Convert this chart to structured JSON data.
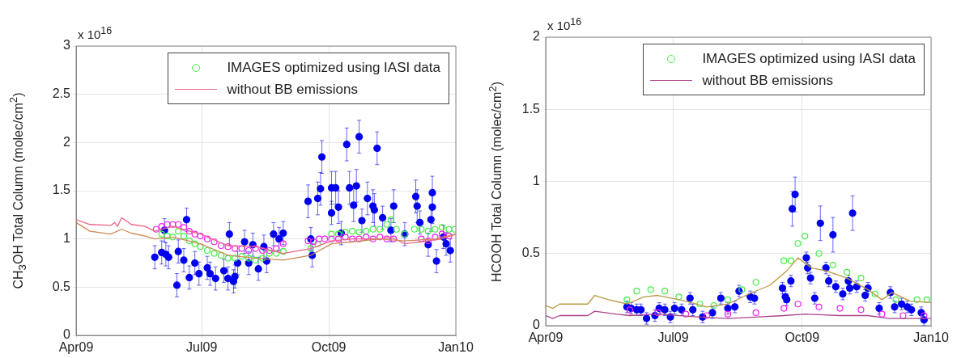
{
  "chart_data": [
    {
      "type": "scatter",
      "ylabel": "CH$_{3}$OH Total Column (molec/cm$^{2}$)",
      "annotations": [
        "x 10$^{16}$"
      ],
      "xlim": [
        "2009-04-01",
        "2010-01-01"
      ],
      "xticks": [
        {
          "value": "2009-04-01",
          "label": "Apr09"
        },
        {
          "value": "2009-07-01",
          "label": "Jul09"
        },
        {
          "value": "2009-10-01",
          "label": "Oct09"
        },
        {
          "value": "2010-01-01",
          "label": "Jan10"
        }
      ],
      "ylim": [
        0,
        3
      ],
      "yticks": [
        0,
        0.5,
        1,
        1.5,
        2,
        2.5,
        3
      ],
      "grid": true,
      "legend": "top right",
      "series": [
        {
          "type": "line",
          "color": "#cc8855",
          "x": [
            "2009-04-01",
            "2009-04-11",
            "2009-04-26",
            "2009-05-04",
            "2009-05-11",
            "2009-05-21",
            "2009-05-28",
            "2009-06-10",
            "2009-06-30",
            "2009-07-20",
            "2009-08-09",
            "2009-08-29",
            "2009-09-18",
            "2009-10-03",
            "2009-10-18",
            "2009-11-07",
            "2009-11-25",
            "2009-12-17",
            "2010-01-01"
          ],
          "values": [
            1.17,
            1.08,
            1.05,
            1.1,
            1.06,
            1.03,
            1.0,
            1.02,
            0.95,
            0.83,
            0.8,
            0.78,
            0.83,
            0.95,
            0.97,
            1.0,
            0.98,
            1.0,
            1.05
          ]
        },
        {
          "type": "line",
          "name": "without BB emissions",
          "color": "#ee6688",
          "x": [
            "2009-04-01",
            "2009-04-11",
            "2009-04-26",
            "2009-04-29",
            "2009-05-01",
            "2009-05-04",
            "2009-05-11",
            "2009-05-21",
            "2009-05-28",
            "2009-06-10",
            "2009-06-30",
            "2009-07-20",
            "2009-08-09",
            "2009-08-29",
            "2009-09-18",
            "2009-10-03",
            "2009-10-18",
            "2009-11-07",
            "2009-11-15",
            "2009-11-25",
            "2009-12-07",
            "2009-12-22",
            "2010-01-01"
          ],
          "values": [
            1.2,
            1.15,
            1.14,
            1.17,
            1.13,
            1.22,
            1.15,
            1.13,
            1.08,
            1.13,
            1.05,
            0.93,
            0.92,
            0.85,
            0.9,
            0.98,
            1.0,
            1.0,
            1.02,
            0.95,
            0.97,
            1.0,
            1.05
          ]
        },
        {
          "color": "#ee22ee",
          "marker": "circle",
          "x": [
            "2009-05-29",
            "2009-06-02",
            "2009-06-06",
            "2009-06-10",
            "2009-06-14",
            "2009-06-18",
            "2009-06-22",
            "2009-06-26",
            "2009-06-30",
            "2009-07-05",
            "2009-07-10",
            "2009-07-15",
            "2009-07-20",
            "2009-07-25",
            "2009-07-30",
            "2009-08-04",
            "2009-08-09",
            "2009-08-14",
            "2009-08-19",
            "2009-08-24",
            "2009-08-29",
            "2009-09-16",
            "2009-09-20",
            "2009-09-24",
            "2009-09-28",
            "2009-10-03",
            "2009-10-08",
            "2009-10-13",
            "2009-10-18",
            "2009-10-23",
            "2009-10-28",
            "2009-11-02",
            "2009-11-07",
            "2009-11-12",
            "2009-11-17",
            "2009-12-07",
            "2009-12-12",
            "2009-12-17",
            "2009-12-22",
            "2009-12-27"
          ],
          "values": [
            1.1,
            1.13,
            1.15,
            1.15,
            1.15,
            1.12,
            1.08,
            1.05,
            1.03,
            1.0,
            0.97,
            0.93,
            0.92,
            0.9,
            0.9,
            0.88,
            0.9,
            0.88,
            0.88,
            0.9,
            0.95,
            0.98,
            0.97,
            1.0,
            1.0,
            1.0,
            1.0,
            1.02,
            1.0,
            1.0,
            1.02,
            1.0,
            1.02,
            1.0,
            1.0,
            1.0,
            0.98,
            1.02,
            1.05,
            1.03
          ]
        },
        {
          "name": "IMAGES optimized using IASI data",
          "color": "#44ee44",
          "marker": "circle",
          "x": [
            "2009-06-02",
            "2009-06-06",
            "2009-06-10",
            "2009-06-14",
            "2009-06-18",
            "2009-06-22",
            "2009-06-26",
            "2009-06-30",
            "2009-07-05",
            "2009-07-10",
            "2009-07-15",
            "2009-07-20",
            "2009-07-25",
            "2009-07-30",
            "2009-08-04",
            "2009-08-09",
            "2009-08-14",
            "2009-08-19",
            "2009-08-24",
            "2009-08-29",
            "2009-09-18",
            "2009-09-23",
            "2009-09-28",
            "2009-10-03",
            "2009-10-08",
            "2009-10-13",
            "2009-10-18",
            "2009-10-23",
            "2009-10-28",
            "2009-11-02",
            "2009-11-07",
            "2009-11-12",
            "2009-11-15",
            "2009-11-19",
            "2009-11-25",
            "2009-12-02",
            "2009-12-07",
            "2009-12-12",
            "2009-12-17",
            "2009-12-22",
            "2009-12-27",
            "2009-12-31"
          ],
          "values": [
            1.05,
            1.03,
            1.02,
            1.08,
            1.03,
            0.98,
            0.95,
            0.92,
            0.88,
            0.85,
            0.83,
            0.8,
            0.8,
            0.82,
            0.8,
            0.78,
            0.8,
            0.85,
            0.85,
            0.87,
            0.9,
            0.95,
            null,
            1.05,
            1.05,
            1.07,
            1.08,
            1.07,
            1.08,
            1.1,
            1.1,
            1.15,
            1.2,
            1.1,
            1.05,
            1.1,
            1.1,
            1.08,
            1.1,
            1.12,
            1.1,
            1.1
          ]
        },
        {
          "color": "#0000ee",
          "marker": "circle",
          "x": [
            "2009-05-28",
            "2009-06-02",
            "2009-06-05",
            "2009-06-07",
            "2009-06-04",
            "2009-06-13",
            "2009-06-14",
            "2009-06-18",
            "2009-06-20",
            "2009-06-22",
            "2009-06-26",
            "2009-06-29",
            "2009-07-05",
            "2009-07-07",
            "2009-07-11",
            "2009-07-17",
            "2009-07-21",
            "2009-07-20",
            "2009-07-24",
            "2009-07-25",
            "2009-07-27",
            "2009-08-01",
            "2009-08-04",
            "2009-08-07",
            "2009-08-11",
            "2009-08-15",
            "2009-08-17",
            "2009-08-22",
            "2009-08-26",
            "2009-08-29",
            "2009-09-16",
            "2009-09-18",
            "2009-09-19",
            "2009-09-23",
            "2009-09-25",
            "2009-09-26",
            "2009-10-03",
            "2009-10-03",
            "2009-10-06",
            "2009-10-08",
            "2009-10-10",
            "2009-10-14",
            "2009-10-16",
            "2009-10-19",
            "2009-10-21",
            "2009-10-23",
            "2009-10-25",
            "2009-10-29",
            "2009-11-02",
            "2009-11-03",
            "2009-11-05",
            "2009-11-09",
            "2009-11-15",
            "2009-11-17",
            "2009-11-25",
            "2009-12-03",
            "2009-12-04",
            "2009-12-06",
            "2009-12-12",
            "2009-12-14",
            "2009-12-15",
            "2009-12-15",
            "2009-12-18",
            "2009-12-23",
            "2009-12-25",
            "2009-12-28"
          ],
          "values": [
            0.81,
            0.86,
            0.84,
            0.81,
            1.09,
            0.52,
            0.87,
            0.78,
            1.2,
            0.6,
            0.75,
            0.64,
            0.7,
            0.64,
            0.59,
            0.67,
            1.05,
            0.59,
            0.56,
            0.61,
            0.75,
            0.97,
            0.75,
            0.94,
            0.69,
            0.92,
            0.77,
            1.05,
            1.0,
            1.06,
            1.39,
            1.0,
            0.83,
            1.42,
            1.52,
            1.85,
            1.27,
            1.53,
            1.53,
            1.33,
            1.06,
            1.98,
            1.53,
            1.35,
            1.55,
            2.06,
            1.19,
            1.42,
            1.34,
            1.3,
            1.94,
            1.22,
            1.09,
            1.34,
            1.05,
            1.44,
            1.34,
            1.17,
            0.94,
            1.2,
            1.48,
            1.33,
            0.77,
            1.02,
            0.95,
            0.88
          ],
          "errors": [
            0.12,
            0.12,
            0.12,
            0.12,
            0.12,
            0.12,
            0.12,
            0.12,
            0.12,
            0.12,
            0.12,
            0.12,
            0.12,
            0.12,
            0.12,
            0.12,
            0.12,
            0.12,
            0.12,
            0.12,
            0.12,
            0.12,
            0.12,
            0.12,
            0.12,
            0.12,
            0.12,
            0.12,
            0.12,
            0.12,
            0.17,
            0.12,
            0.12,
            0.17,
            0.17,
            0.17,
            0.12,
            0.17,
            0.17,
            0.17,
            0.12,
            0.17,
            0.17,
            0.17,
            0.17,
            0.17,
            0.12,
            0.17,
            0.17,
            0.17,
            0.17,
            0.12,
            0.12,
            0.17,
            0.12,
            0.17,
            0.17,
            0.12,
            0.12,
            0.12,
            0.17,
            0.17,
            0.12,
            0.12,
            0.12,
            0.12
          ]
        }
      ]
    },
    {
      "type": "scatter",
      "ylabel": "HCOOH Total Column (molec/cm$^{2}$)",
      "annotations": [
        "x 10$^{16}$"
      ],
      "xlim": [
        "2009-04-01",
        "2010-01-01"
      ],
      "xticks": [
        {
          "value": "2009-04-01",
          "label": "Apr09"
        },
        {
          "value": "2009-07-01",
          "label": "Jul09"
        },
        {
          "value": "2009-10-01",
          "label": "Oct09"
        },
        {
          "value": "2010-01-01",
          "label": "Jan10"
        }
      ],
      "ylim": [
        0,
        2
      ],
      "yticks": [
        0,
        0.5,
        1,
        1.5,
        2
      ],
      "grid": true,
      "legend": "top right",
      "series": [
        {
          "type": "line",
          "color": "#bb9944",
          "x": [
            "2009-04-01",
            "2009-04-06",
            "2009-04-11",
            "2009-05-01",
            "2009-05-06",
            "2009-05-16",
            "2009-05-29",
            "2009-06-10",
            "2009-06-20",
            "2009-07-10",
            "2009-07-25",
            "2009-08-09",
            "2009-08-24",
            "2009-09-08",
            "2009-09-20",
            "2009-09-28",
            "2009-10-08",
            "2009-10-18",
            "2009-11-02",
            "2009-11-17",
            "2009-11-27",
            "2009-12-04",
            "2009-12-17",
            "2010-01-01"
          ],
          "values": [
            0.14,
            0.12,
            0.15,
            0.15,
            0.21,
            0.18,
            0.15,
            0.2,
            0.21,
            0.17,
            0.13,
            0.15,
            0.22,
            0.28,
            0.38,
            0.47,
            0.4,
            0.38,
            0.33,
            0.25,
            0.18,
            0.23,
            0.17,
            0.16
          ]
        },
        {
          "type": "line",
          "name": "without BB emissions",
          "color": "#aa4488",
          "x": [
            "2009-04-01",
            "2009-04-06",
            "2009-04-11",
            "2009-05-01",
            "2009-05-06",
            "2009-05-21",
            "2009-05-31",
            "2009-06-20",
            "2009-07-20",
            "2009-08-09",
            "2009-08-29",
            "2009-09-18",
            "2009-10-03",
            "2009-10-28",
            "2009-11-17",
            "2009-12-02",
            "2010-01-01"
          ],
          "values": [
            0.07,
            0.05,
            0.07,
            0.07,
            0.1,
            0.08,
            0.07,
            0.08,
            0.06,
            0.05,
            0.06,
            0.07,
            0.08,
            0.07,
            0.07,
            0.05,
            0.05
          ]
        },
        {
          "name": "IMAGES optimized using IASI data",
          "color": "#44ee44",
          "marker": "circle",
          "x": [
            "2009-05-29",
            "2009-06-05",
            "2009-06-15",
            "2009-06-25",
            "2009-07-05",
            "2009-07-20",
            "2009-07-30",
            "2009-08-09",
            "2009-08-19",
            "2009-08-29",
            "2009-09-18",
            "2009-09-23",
            "2009-09-28",
            "2009-10-03",
            "2009-10-13",
            "2009-10-23",
            "2009-11-02",
            "2009-11-12",
            "2009-11-22",
            "2009-12-07",
            "2009-12-22",
            "2009-12-29"
          ],
          "values": [
            0.18,
            0.24,
            0.25,
            0.24,
            0.2,
            0.15,
            0.14,
            0.18,
            0.25,
            0.3,
            0.45,
            0.45,
            0.57,
            0.62,
            0.5,
            0.42,
            0.37,
            0.33,
            0.22,
            0.18,
            0.18,
            0.18
          ]
        },
        {
          "color": "#ee22ee",
          "marker": "circle",
          "x": [
            "2009-05-31",
            "2009-06-20",
            "2009-07-10",
            "2009-07-25",
            "2009-08-09",
            "2009-08-29",
            "2009-09-18",
            "2009-09-28",
            "2009-10-13",
            "2009-10-28",
            "2009-11-12",
            "2009-11-27",
            "2009-12-12",
            "2009-12-27"
          ],
          "values": [
            0.11,
            0.09,
            0.08,
            0.07,
            0.08,
            0.09,
            0.12,
            0.15,
            0.13,
            0.12,
            0.11,
            0.08,
            0.07,
            0.07
          ]
        },
        {
          "color": "#0000ee",
          "marker": "circle",
          "x": [
            "2009-05-29",
            "2009-06-01",
            "2009-06-05",
            "2009-06-08",
            "2009-06-12",
            "2009-06-18",
            "2009-06-21",
            "2009-06-25",
            "2009-06-29",
            "2009-07-02",
            "2009-07-07",
            "2009-07-13",
            "2009-07-15",
            "2009-07-22",
            "2009-07-29",
            "2009-08-04",
            "2009-08-09",
            "2009-08-14",
            "2009-08-17",
            "2009-08-25",
            "2009-08-28",
            "2009-09-17",
            "2009-09-19",
            "2009-09-20",
            "2009-09-23",
            "2009-09-24",
            "2009-09-26",
            "2009-10-04",
            "2009-10-05",
            "2009-10-07",
            "2009-10-10",
            "2009-10-14",
            "2009-10-18",
            "2009-10-20",
            "2009-10-23",
            "2009-10-25",
            "2009-10-30",
            "2009-11-03",
            "2009-11-04",
            "2009-11-06",
            "2009-11-09",
            "2009-11-15",
            "2009-11-17",
            "2009-11-25",
            "2009-12-03",
            "2009-12-06",
            "2009-12-11",
            "2009-12-15",
            "2009-12-18",
            "2009-12-25",
            "2009-12-27"
          ],
          "values": [
            0.13,
            0.12,
            0.11,
            0.11,
            0.05,
            0.07,
            0.12,
            0.11,
            0.06,
            0.12,
            0.11,
            0.19,
            0.11,
            0.06,
            0.09,
            0.19,
            0.12,
            0.13,
            0.24,
            0.2,
            0.19,
            0.26,
            0.2,
            0.18,
            0.31,
            0.81,
            0.91,
            0.47,
            0.4,
            0.33,
            0.19,
            0.71,
            0.4,
            0.31,
            0.63,
            0.27,
            0.22,
            0.31,
            0.26,
            0.78,
            0.27,
            0.21,
            0.26,
            0.12,
            0.23,
            0.13,
            0.15,
            0.13,
            0.11,
            0.09,
            0.04
          ],
          "errors": [
            0.04,
            0.04,
            0.04,
            0.04,
            0.04,
            0.04,
            0.04,
            0.04,
            0.04,
            0.04,
            0.04,
            0.04,
            0.04,
            0.04,
            0.04,
            0.04,
            0.04,
            0.04,
            0.04,
            0.04,
            0.04,
            0.04,
            0.04,
            0.04,
            0.04,
            0.12,
            0.12,
            0.04,
            0.04,
            0.04,
            0.04,
            0.12,
            0.04,
            0.04,
            0.12,
            0.04,
            0.04,
            0.04,
            0.04,
            0.12,
            0.04,
            0.04,
            0.04,
            0.04,
            0.04,
            0.04,
            0.04,
            0.04,
            0.04,
            0.04,
            0.04
          ]
        }
      ]
    }
  ]
}
